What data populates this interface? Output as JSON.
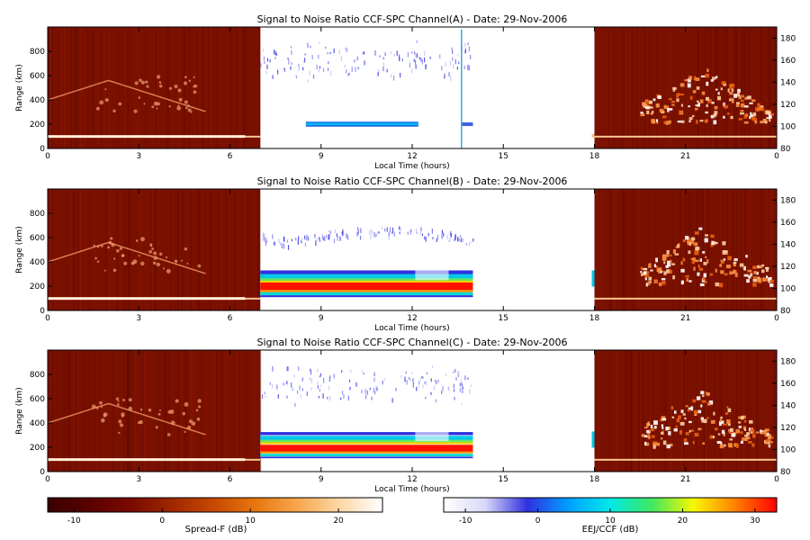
{
  "colors": {
    "spreadf_scale": [
      "#3a0000",
      "#5a0000",
      "#7a0a00",
      "#a02800",
      "#c84a00",
      "#e87810",
      "#f8a850",
      "#fcd8a8",
      "#ffffff"
    ],
    "eej_scale": [
      "#ffffff",
      "#d8d8f8",
      "#3030e0",
      "#00a0ff",
      "#00e8e8",
      "#40e860",
      "#f8f800",
      "#ff8000",
      "#ff0000"
    ],
    "night_background": "#7a1000",
    "day_background": "#ffffff"
  },
  "panels": [
    {
      "title": "Signal to Noise Ratio CCF-SPC Channel(A) - Date: 29-Nov-2006",
      "xlabel": "Local Time (hours)",
      "ylabel": "Range (km)",
      "x_ticks": [
        "0",
        "3",
        "6",
        "9",
        "12",
        "15",
        "18",
        "21",
        "0"
      ],
      "y_left_ticks": [
        "0",
        "200",
        "400",
        "600",
        "800"
      ],
      "y_right_ticks": [
        "80",
        "100",
        "120",
        "140",
        "160",
        "180"
      ],
      "day_strength": 0.25
    },
    {
      "title": "Signal to Noise Ratio CCF-SPC Channel(B) - Date: 29-Nov-2006",
      "xlabel": "Local Time (hours)",
      "ylabel": "Range (km)",
      "x_ticks": [
        "0",
        "3",
        "6",
        "9",
        "12",
        "15",
        "18",
        "21",
        "0"
      ],
      "y_left_ticks": [
        "0",
        "200",
        "400",
        "600",
        "800"
      ],
      "y_right_ticks": [
        "80",
        "100",
        "120",
        "140",
        "160",
        "180"
      ],
      "day_strength": 1.0
    },
    {
      "title": "Signal to Noise Ratio CCF-SPC Channel(C) - Date: 29-Nov-2006",
      "xlabel": "Local Time (hours)",
      "ylabel": "Range (km)",
      "x_ticks": [
        "0",
        "3",
        "6",
        "9",
        "12",
        "15",
        "18",
        "21",
        "0"
      ],
      "y_left_ticks": [
        "0",
        "200",
        "400",
        "600",
        "800"
      ],
      "y_right_ticks": [
        "80",
        "100",
        "120",
        "140",
        "160",
        "180"
      ],
      "day_strength": 0.85
    }
  ],
  "colorbars": [
    {
      "label": "Spread-F (dB)",
      "ticks": [
        "-10",
        "0",
        "10",
        "20"
      ],
      "range": [
        -13,
        25
      ]
    },
    {
      "label": "EEJ/CCF (dB)",
      "ticks": [
        "-10",
        "0",
        "10",
        "20",
        "30"
      ],
      "range": [
        -13,
        33
      ]
    }
  ],
  "chart_data": {
    "type": "heatmap",
    "x_unit": "Local Time (hours)",
    "xlim": [
      0,
      24
    ],
    "ylim_left": [
      0,
      1000
    ],
    "ylim_right": [
      80,
      190
    ],
    "data_gaps_hours": [
      [
        14,
        18
      ]
    ],
    "segments": [
      {
        "name": "Spread-F",
        "x_range": [
          0,
          7
        ],
        "colorbar": "Spread-F (dB)"
      },
      {
        "name": "EEJ/CCF",
        "x_range": [
          7,
          14
        ],
        "colorbar": "EEJ/CCF (dB)"
      },
      {
        "name": "Spread-F",
        "x_range": [
          18,
          24
        ],
        "colorbar": "Spread-F (dB)"
      }
    ]
  }
}
